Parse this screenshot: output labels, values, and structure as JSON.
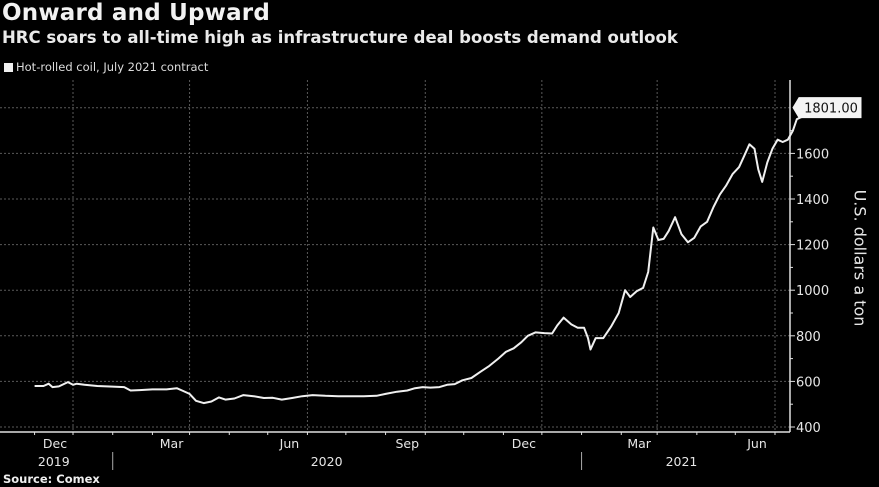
{
  "header": {
    "title": "Onward and Upward",
    "subtitle": "HRC soars to all-time high as infrastructure deal boosts demand outlook"
  },
  "footer": {
    "source": "Source: Comex"
  },
  "colors": {
    "background": "#000000",
    "line": "#f0f0f0",
    "grid": "#5a5a5a",
    "axis": "#e0e0e0"
  },
  "chart_data": {
    "type": "line",
    "title": "Onward and Upward",
    "subtitle": "HRC soars to all-time high as infrastructure deal boosts demand outlook",
    "xlabel": "",
    "ylabel": "U.S. dollars a ton",
    "ylim": [
      400,
      1900
    ],
    "yticks": [
      400,
      600,
      800,
      1000,
      1200,
      1400,
      1600
    ],
    "ytick_labels": [
      "400",
      "600",
      "800",
      "1000",
      "1200",
      "1400",
      "1600"
    ],
    "grid": true,
    "legend": {
      "position": "top-left",
      "entries": [
        "Hot-rolled coil, July 2021 contract"
      ]
    },
    "last_value_label": "1801.00",
    "last_value": 1801.0,
    "x_range": [
      "2019-11-01",
      "2021-06-26"
    ],
    "xticks": [
      {
        "date": "2019-12-01",
        "label": "Dec"
      },
      {
        "date": "2020-03-01",
        "label": "Mar"
      },
      {
        "date": "2020-06-01",
        "label": "Jun"
      },
      {
        "date": "2020-09-01",
        "label": "Sep"
      },
      {
        "date": "2020-12-01",
        "label": "Dec"
      },
      {
        "date": "2021-03-01",
        "label": "Mar"
      },
      {
        "date": "2021-06-01",
        "label": "Jun"
      }
    ],
    "year_labels": [
      {
        "label": "2019",
        "date": "2019-11-16"
      },
      {
        "label": "2020",
        "date": "2020-06-16"
      },
      {
        "label": "2021",
        "date": "2021-03-20"
      }
    ],
    "year_dividers": [
      "2020-01-01",
      "2021-01-01"
    ],
    "series": [
      {
        "name": "Hot-rolled coil, July 2021 contract",
        "points": [
          [
            "2019-11-01",
            580
          ],
          [
            "2019-11-08",
            580
          ],
          [
            "2019-11-12",
            590
          ],
          [
            "2019-11-15",
            575
          ],
          [
            "2019-11-20",
            578
          ],
          [
            "2019-11-27",
            597
          ],
          [
            "2019-12-01",
            585
          ],
          [
            "2019-12-04",
            590
          ],
          [
            "2019-12-10",
            585
          ],
          [
            "2019-12-20",
            580
          ],
          [
            "2020-01-01",
            577
          ],
          [
            "2020-01-10",
            575
          ],
          [
            "2020-01-15",
            560
          ],
          [
            "2020-01-22",
            562
          ],
          [
            "2020-02-01",
            565
          ],
          [
            "2020-02-12",
            565
          ],
          [
            "2020-02-20",
            570
          ],
          [
            "2020-02-25",
            558
          ],
          [
            "2020-03-01",
            545
          ],
          [
            "2020-03-06",
            515
          ],
          [
            "2020-03-12",
            505
          ],
          [
            "2020-03-18",
            512
          ],
          [
            "2020-03-24",
            530
          ],
          [
            "2020-03-29",
            520
          ],
          [
            "2020-04-05",
            525
          ],
          [
            "2020-04-12",
            540
          ],
          [
            "2020-04-20",
            535
          ],
          [
            "2020-04-28",
            527
          ],
          [
            "2020-05-05",
            528
          ],
          [
            "2020-05-12",
            520
          ],
          [
            "2020-05-20",
            527
          ],
          [
            "2020-05-28",
            535
          ],
          [
            "2020-06-05",
            540
          ],
          [
            "2020-06-15",
            537
          ],
          [
            "2020-06-25",
            535
          ],
          [
            "2020-07-05",
            535
          ],
          [
            "2020-07-15",
            535
          ],
          [
            "2020-07-25",
            537
          ],
          [
            "2020-08-01",
            545
          ],
          [
            "2020-08-10",
            555
          ],
          [
            "2020-08-18",
            560
          ],
          [
            "2020-08-24",
            570
          ],
          [
            "2020-08-30",
            575
          ],
          [
            "2020-09-05",
            573
          ],
          [
            "2020-09-12",
            575
          ],
          [
            "2020-09-18",
            585
          ],
          [
            "2020-09-24",
            588
          ],
          [
            "2020-09-30",
            605
          ],
          [
            "2020-10-07",
            615
          ],
          [
            "2020-10-14",
            642
          ],
          [
            "2020-10-21",
            668
          ],
          [
            "2020-10-28",
            700
          ],
          [
            "2020-11-03",
            730
          ],
          [
            "2020-11-09",
            745
          ],
          [
            "2020-11-15",
            772
          ],
          [
            "2020-11-20",
            800
          ],
          [
            "2020-11-26",
            815
          ],
          [
            "2020-12-03",
            812
          ],
          [
            "2020-12-09",
            810
          ],
          [
            "2020-12-13",
            845
          ],
          [
            "2020-12-18",
            880
          ],
          [
            "2020-12-24",
            850
          ],
          [
            "2020-12-29",
            835
          ],
          [
            "2021-01-03",
            835
          ],
          [
            "2021-01-06",
            790
          ],
          [
            "2021-01-08",
            740
          ],
          [
            "2021-01-12",
            790
          ],
          [
            "2021-01-18",
            790
          ],
          [
            "2021-01-24",
            840
          ],
          [
            "2021-01-30",
            900
          ],
          [
            "2021-02-04",
            1000
          ],
          [
            "2021-02-08",
            970
          ],
          [
            "2021-02-13",
            995
          ],
          [
            "2021-02-18",
            1010
          ],
          [
            "2021-02-22",
            1080
          ],
          [
            "2021-02-26",
            1275
          ],
          [
            "2021-03-02",
            1220
          ],
          [
            "2021-03-06",
            1225
          ],
          [
            "2021-03-10",
            1260
          ],
          [
            "2021-03-15",
            1320
          ],
          [
            "2021-03-20",
            1245
          ],
          [
            "2021-03-25",
            1210
          ],
          [
            "2021-03-30",
            1230
          ],
          [
            "2021-04-04",
            1280
          ],
          [
            "2021-04-09",
            1300
          ],
          [
            "2021-04-14",
            1365
          ],
          [
            "2021-04-19",
            1420
          ],
          [
            "2021-04-24",
            1460
          ],
          [
            "2021-04-29",
            1510
          ],
          [
            "2021-05-04",
            1540
          ],
          [
            "2021-05-08",
            1590
          ],
          [
            "2021-05-12",
            1640
          ],
          [
            "2021-05-16",
            1620
          ],
          [
            "2021-05-19",
            1530
          ],
          [
            "2021-05-22",
            1475
          ],
          [
            "2021-05-26",
            1560
          ],
          [
            "2021-05-30",
            1620
          ],
          [
            "2021-06-03",
            1660
          ],
          [
            "2021-06-07",
            1650
          ],
          [
            "2021-06-11",
            1660
          ],
          [
            "2021-06-15",
            1700
          ],
          [
            "2021-06-18",
            1750
          ],
          [
            "2021-06-22",
            1760
          ],
          [
            "2021-06-26",
            1801
          ]
        ]
      }
    ]
  }
}
